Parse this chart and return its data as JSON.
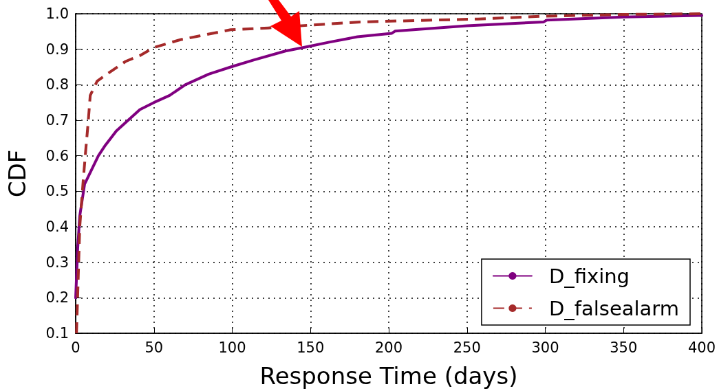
{
  "chart_data": {
    "type": "line",
    "xlabel": "Response Time (days)",
    "ylabel": "CDF",
    "xlim": [
      0,
      400
    ],
    "xticks": [
      0,
      50,
      100,
      150,
      200,
      250,
      300,
      350,
      400
    ],
    "ylim": [
      0.1,
      1.0
    ],
    "yticks": [
      {
        "value": 0.1,
        "label": "0.1"
      },
      {
        "value": 0.2,
        "label": "0.2"
      },
      {
        "value": 0.3,
        "label": "0.3"
      },
      {
        "value": 0.4,
        "label": "0.4"
      },
      {
        "value": 0.5,
        "label": "0.5"
      },
      {
        "value": 0.6,
        "label": "0.6"
      },
      {
        "value": 0.7,
        "label": "0.7"
      },
      {
        "value": 0.8,
        "label": "0.8"
      },
      {
        "value": 0.9,
        "label": "0.9"
      },
      {
        "value": 1.0,
        "label": "1.0"
      }
    ],
    "grid": true,
    "legend": "bottom right",
    "marker": "none",
    "series": [
      {
        "name": "D_fixing",
        "color": "#800080",
        "line_style": "solid",
        "x": [
          0,
          1.3,
          2.6,
          5.7,
          14.5,
          19,
          26,
          41,
          50,
          60,
          70,
          85,
          99,
          114,
          134,
          149,
          162,
          180,
          202,
          204,
          250,
          299,
          301,
          350,
          400
        ],
        "values": [
          0.2,
          0.34,
          0.43,
          0.52,
          0.6,
          0.63,
          0.67,
          0.73,
          0.75,
          0.77,
          0.8,
          0.83,
          0.85,
          0.87,
          0.895,
          0.908,
          0.92,
          0.935,
          0.945,
          0.951,
          0.966,
          0.977,
          0.982,
          0.991,
          0.995
        ]
      },
      {
        "name": "D_falsealarm",
        "color": "#a52a2a",
        "line_style": "dashed",
        "x": [
          0.5,
          1.3,
          2.6,
          4.8,
          6.5,
          7.9,
          9.3,
          13.7,
          20,
          32,
          41,
          50,
          67,
          99,
          123,
          150,
          182,
          257,
          298,
          350,
          400
        ],
        "values": [
          0.1,
          0.21,
          0.4,
          0.53,
          0.62,
          0.69,
          0.77,
          0.81,
          0.83,
          0.866,
          0.882,
          0.905,
          0.927,
          0.955,
          0.96,
          0.968,
          0.977,
          0.985,
          0.993,
          0.998,
          1.0
        ]
      }
    ]
  }
}
